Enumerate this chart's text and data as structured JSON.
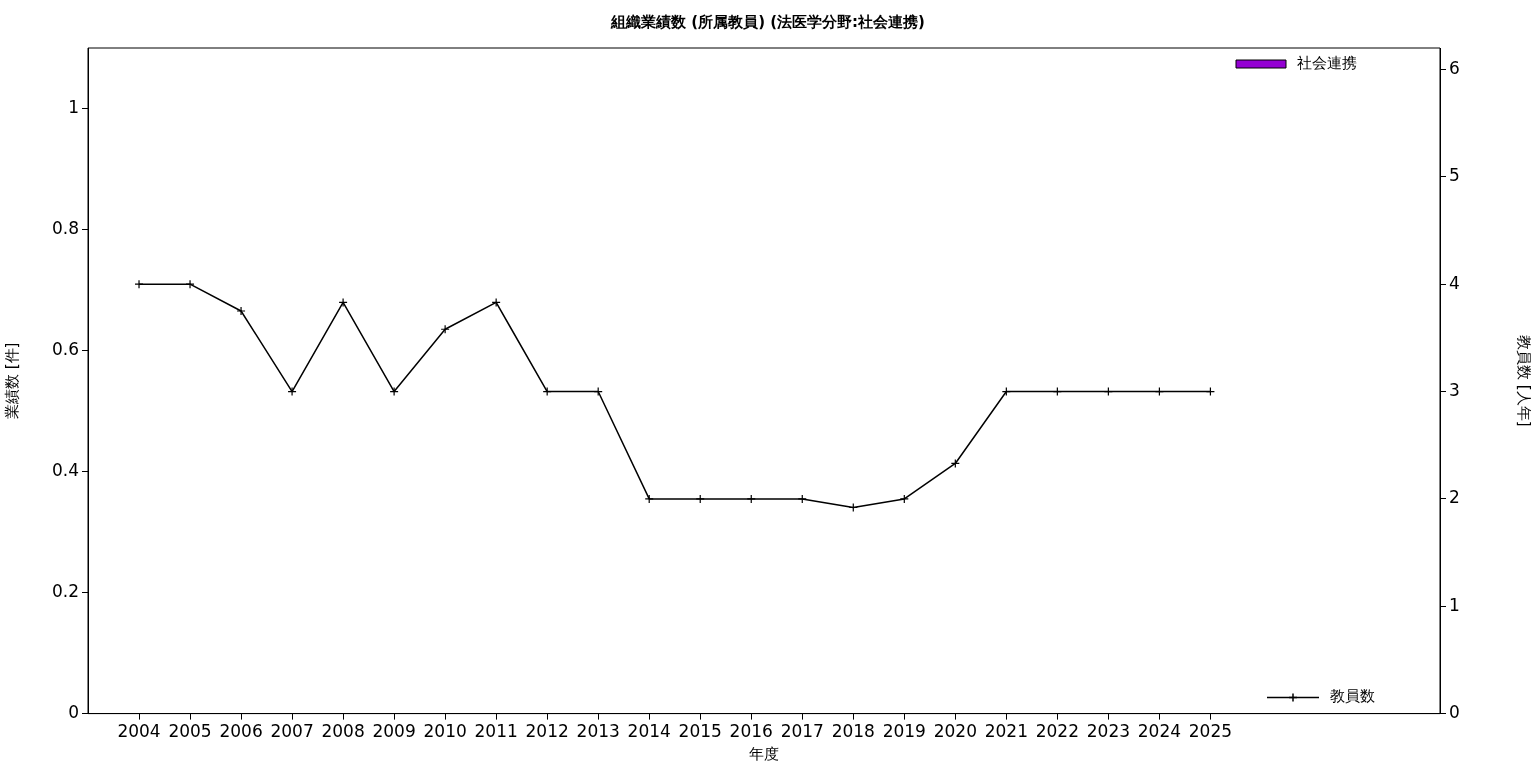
{
  "chart_data": {
    "type": "bar",
    "title": "組織業績数 (所属教員) (法医学分野:社会連携)",
    "xlabel": "年度",
    "ylabel": "業績数 [件]",
    "y2label": "教員数 [人年]",
    "x": [
      2004,
      2005,
      2006,
      2007,
      2008,
      2009,
      2010,
      2011,
      2012,
      2013,
      2014,
      2015,
      2016,
      2017,
      2018,
      2019,
      2020,
      2021,
      2022,
      2023,
      2024,
      2025
    ],
    "xlim": [
      2003,
      2029.5
    ],
    "xticks": [
      2004,
      2005,
      2006,
      2007,
      2008,
      2009,
      2010,
      2011,
      2012,
      2013,
      2014,
      2015,
      2016,
      2017,
      2018,
      2019,
      2020,
      2021,
      2022,
      2023,
      2024,
      2025
    ],
    "ylim": [
      0,
      1.1
    ],
    "yticks": [
      0,
      0.2,
      0.4,
      0.6,
      0.8,
      1
    ],
    "y2lim": [
      0,
      6.2
    ],
    "y2ticks": [
      0,
      1,
      2,
      3,
      4,
      5,
      6
    ],
    "series": [
      {
        "name": "社会連携",
        "color": "#9400d3",
        "values": [
          0,
          0,
          0,
          0,
          0,
          0,
          0,
          0,
          0,
          0,
          0,
          0,
          0,
          0,
          0,
          0,
          0,
          0,
          0,
          0,
          0,
          0
        ]
      },
      {
        "name": "教員数",
        "type": "line",
        "axis": "y2",
        "color": "#000000",
        "marker": "cross",
        "line_style": "solid",
        "values": [
          4,
          4,
          3.75,
          3,
          3.83,
          3,
          3.58,
          3.83,
          3,
          3,
          2,
          2,
          2,
          2,
          1.92,
          2,
          2.33,
          3,
          3,
          3,
          3,
          3
        ]
      }
    ],
    "legend": "right",
    "grid": false
  }
}
